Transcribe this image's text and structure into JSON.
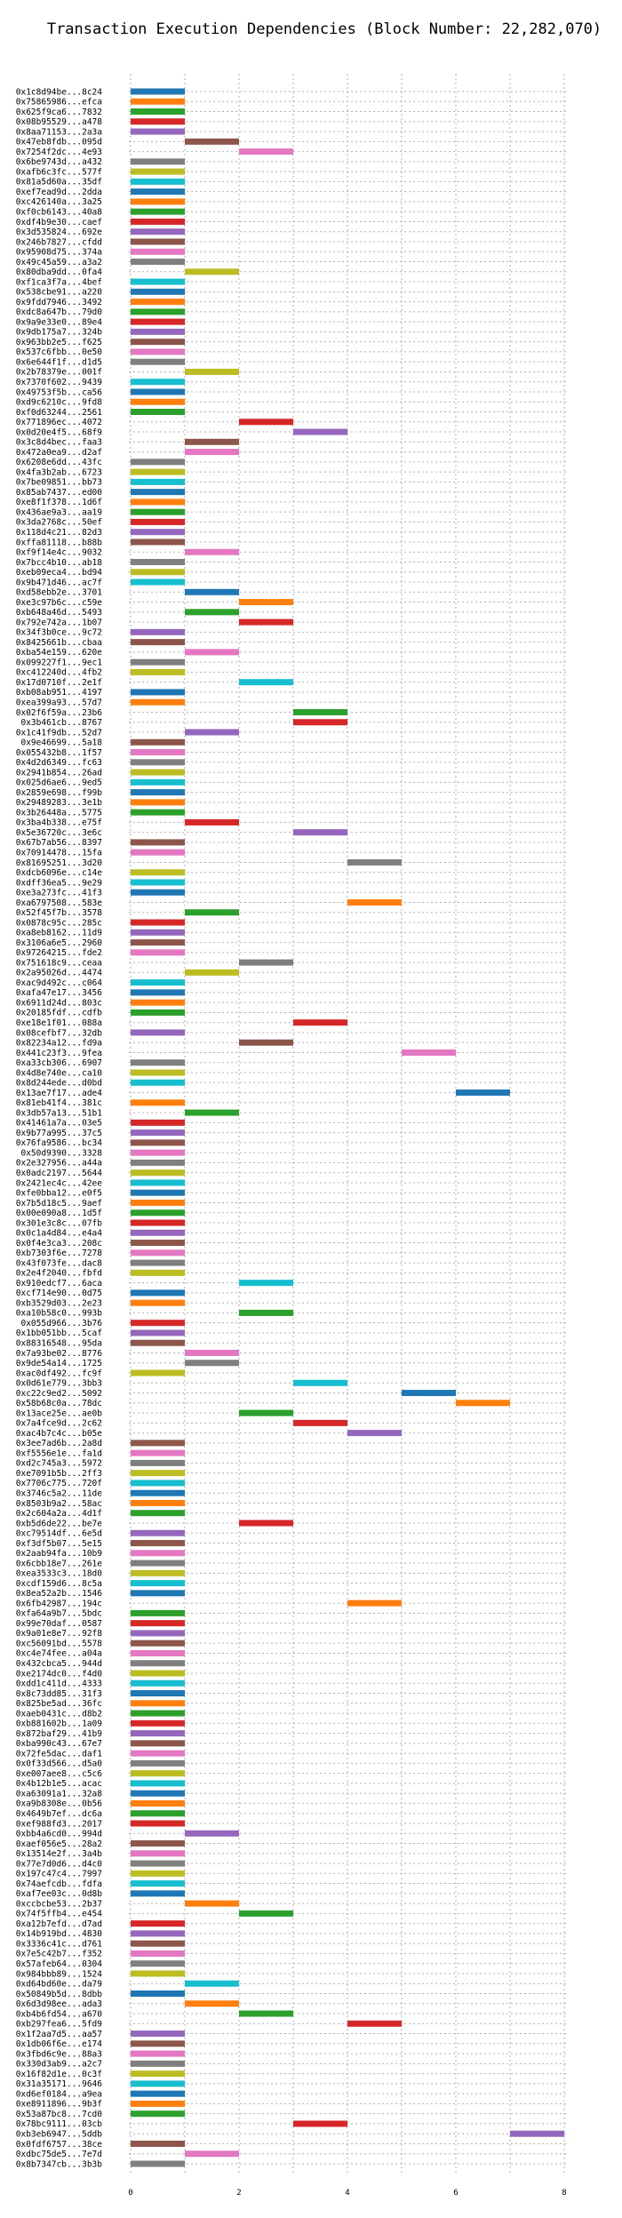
{
  "chart_data": {
    "type": "bar",
    "orientation": "horizontal",
    "title": "Transaction Execution Dependencies (Block Number: 22,282,070)",
    "xlabel": "",
    "ylabel": "",
    "xlim": [
      0,
      8
    ],
    "xticks": [
      0,
      2,
      4,
      6,
      8
    ],
    "grid": true,
    "colors": [
      "#1f77b4",
      "#ff7f0e",
      "#2ca02c",
      "#d62728",
      "#9467bd",
      "#8c564b",
      "#e377c2",
      "#7f7f7f",
      "#bcbd22",
      "#17becf"
    ],
    "transactions": [
      {
        "label": "0x1c8d94be...8c24",
        "start": 0
      },
      {
        "label": "0x75865986...efca",
        "start": 0
      },
      {
        "label": "0x625f9ca6...7832",
        "start": 0
      },
      {
        "label": "0x08b95529...a478",
        "start": 0
      },
      {
        "label": "0x8aa71153...2a3a",
        "start": 0
      },
      {
        "label": "0x47eb8fdb...095d",
        "start": 1
      },
      {
        "label": "0x7254f2dc...4e93",
        "start": 2
      },
      {
        "label": "0x6be9743d...a432",
        "start": 0
      },
      {
        "label": "0xafb6c3fc...577f",
        "start": 0
      },
      {
        "label": "0x81a5d60a...35df",
        "start": 0
      },
      {
        "label": "0xef7ead9d...2dda",
        "start": 0
      },
      {
        "label": "0xc426140a...3a25",
        "start": 0
      },
      {
        "label": "0xf0cb6143...40a8",
        "start": 0
      },
      {
        "label": "0xdf4b9e30...caef",
        "start": 0
      },
      {
        "label": "0x3d535824...692e",
        "start": 0
      },
      {
        "label": "0x246b7827...cfdd",
        "start": 0
      },
      {
        "label": "0x95908d75...374a",
        "start": 0
      },
      {
        "label": "0x49c45a59...a3a2",
        "start": 0
      },
      {
        "label": "0x80dba9dd...0fa4",
        "start": 1
      },
      {
        "label": "0xf1ca3f7a...4bef",
        "start": 0
      },
      {
        "label": "0x538cbe91...a220",
        "start": 0
      },
      {
        "label": "0x9fdd7946...3492",
        "start": 0
      },
      {
        "label": "0xdc8a647b...79d0",
        "start": 0
      },
      {
        "label": "0x9a9e33e0...89e4",
        "start": 0
      },
      {
        "label": "0x9db175a7...324b",
        "start": 0
      },
      {
        "label": "0x963bb2e5...f625",
        "start": 0
      },
      {
        "label": "0x537c6fbb...0e50",
        "start": 0
      },
      {
        "label": "0x6e644f1f...d1d5",
        "start": 0
      },
      {
        "label": "0x2b78379e...001f",
        "start": 1
      },
      {
        "label": "0x7370f602...9439",
        "start": 0
      },
      {
        "label": "0x49753f5b...ca56",
        "start": 0
      },
      {
        "label": "0xd9c6210c...9fd8",
        "start": 0
      },
      {
        "label": "0xf0d63244...2561",
        "start": 0
      },
      {
        "label": "0x771896ec...4072",
        "start": 2
      },
      {
        "label": "0x0d20e4f5...68f9",
        "start": 3
      },
      {
        "label": "0x3c8d4bec...faa3",
        "start": 1
      },
      {
        "label": "0x472a0ea9...d2af",
        "start": 1
      },
      {
        "label": "0x6208e6dd...43fc",
        "start": 0
      },
      {
        "label": "0x4fa3b2ab...6723",
        "start": 0
      },
      {
        "label": "0x7be09851...bb73",
        "start": 0
      },
      {
        "label": "0x85ab7437...ed00",
        "start": 0
      },
      {
        "label": "0xe8f1f378...1d6f",
        "start": 0
      },
      {
        "label": "0x436ae9a3...aa19",
        "start": 0
      },
      {
        "label": "0x3da2768c...50ef",
        "start": 0
      },
      {
        "label": "0x118d4c21...82d3",
        "start": 0
      },
      {
        "label": "0xffa81118...b88b",
        "start": 0
      },
      {
        "label": "0xf9f14e4c...9032",
        "start": 1
      },
      {
        "label": "0x7bcc4b10...ab18",
        "start": 0
      },
      {
        "label": "0xeb09eca4...bd94",
        "start": 0
      },
      {
        "label": "0x9b471d46...ac7f",
        "start": 0
      },
      {
        "label": "0xd58ebb2e...3701",
        "start": 1
      },
      {
        "label": "0xe3c97b6c...c59e",
        "start": 2
      },
      {
        "label": "0xb648a46d...5493",
        "start": 1
      },
      {
        "label": "0x792e742a...1b07",
        "start": 2
      },
      {
        "label": "0x34f3b0ce...9c72",
        "start": 0
      },
      {
        "label": "0x8425661b...cbaa",
        "start": 0
      },
      {
        "label": "0xba54e159...620e",
        "start": 1
      },
      {
        "label": "0x099227f1...9ec1",
        "start": 0
      },
      {
        "label": "0xc412240d...4fb2",
        "start": 0
      },
      {
        "label": "0x17d0710f...2e1f",
        "start": 2
      },
      {
        "label": "0xb08ab951...4197",
        "start": 0
      },
      {
        "label": "0xea399a93...57d7",
        "start": 0
      },
      {
        "label": "0x02f6f59a...23b6",
        "start": 3
      },
      {
        "label": "0x3b461cb...8767",
        "start": 3
      },
      {
        "label": "0x1c41f9db...52d7",
        "start": 1
      },
      {
        "label": "0x9e46699...5a18",
        "start": 0
      },
      {
        "label": "0x055432b8...1f57",
        "start": 0
      },
      {
        "label": "0x4d2d6349...fc63",
        "start": 0
      },
      {
        "label": "0x2941b854...26ad",
        "start": 0
      },
      {
        "label": "0x025d6ae6...9ed5",
        "start": 0
      },
      {
        "label": "0x2859e698...f99b",
        "start": 0
      },
      {
        "label": "0x29489283...3e1b",
        "start": 0
      },
      {
        "label": "0x3b26448a...5775",
        "start": 0
      },
      {
        "label": "0x3ba4b338...e75f",
        "start": 1
      },
      {
        "label": "0x5e36720c...3e6c",
        "start": 3
      },
      {
        "label": "0x67b7ab56...8397",
        "start": 0
      },
      {
        "label": "0x70914478...15fa",
        "start": 0
      },
      {
        "label": "0x81695251...3d20",
        "start": 4
      },
      {
        "label": "0xdcb6096e...c14e",
        "start": 0
      },
      {
        "label": "0xdff36ea5...9e29",
        "start": 0
      },
      {
        "label": "0xe3a273fc...41f3",
        "start": 0
      },
      {
        "label": "0xa6797508...583e",
        "start": 4
      },
      {
        "label": "0x52f45f7b...3578",
        "start": 1
      },
      {
        "label": "0x0878c95c...285c",
        "start": 0
      },
      {
        "label": "0xa8eb8162...11d9",
        "start": 0
      },
      {
        "label": "0x3106a6e5...2960",
        "start": 0
      },
      {
        "label": "0x97264215...fde2",
        "start": 0
      },
      {
        "label": "0x751618c9...ceaa",
        "start": 2
      },
      {
        "label": "0x2a95026d...4474",
        "start": 1
      },
      {
        "label": "0xac9d492c...c064",
        "start": 0
      },
      {
        "label": "0xafa47e17...3456",
        "start": 0
      },
      {
        "label": "0x6911d24d...803c",
        "start": 0
      },
      {
        "label": "0x20185fdf...cdfb",
        "start": 0
      },
      {
        "label": "0xe18e1f01...088a",
        "start": 3
      },
      {
        "label": "0x08cefbf7...32db",
        "start": 0
      },
      {
        "label": "0x82234a12...fd9a",
        "start": 2
      },
      {
        "label": "0x441c23f3...9fea",
        "start": 5
      },
      {
        "label": "0xa33cb306...6907",
        "start": 0
      },
      {
        "label": "0x4d8e740e...ca10",
        "start": 0
      },
      {
        "label": "0x8d244ede...d0bd",
        "start": 0
      },
      {
        "label": "0x13ae7f17...ade4",
        "start": 6
      },
      {
        "label": "0x81eb41f4...381c",
        "start": 0
      },
      {
        "label": "0x3db57a13...51b1",
        "start": 1
      },
      {
        "label": "0x41461a7a...03e5",
        "start": 0
      },
      {
        "label": "0x9b77a995...37c5",
        "start": 0
      },
      {
        "label": "0x76fa9586...bc34",
        "start": 0
      },
      {
        "label": "0x50d9390...3328",
        "start": 0
      },
      {
        "label": "0x2e327956...a44a",
        "start": 0
      },
      {
        "label": "0x0adc2197...5644",
        "start": 0
      },
      {
        "label": "0x2421ec4c...42ee",
        "start": 0
      },
      {
        "label": "0xfe0bba12...e0f5",
        "start": 0
      },
      {
        "label": "0x7b5d18c5...9aef",
        "start": 0
      },
      {
        "label": "0x00e090a8...1d5f",
        "start": 0
      },
      {
        "label": "0x301e3c8c...07fb",
        "start": 0
      },
      {
        "label": "0x0c1a4d84...e4a4",
        "start": 0
      },
      {
        "label": "0x0f4e3ca3...208c",
        "start": 0
      },
      {
        "label": "0xb7303f6e...7278",
        "start": 0
      },
      {
        "label": "0x43f073fe...dac8",
        "start": 0
      },
      {
        "label": "0x2e4f2040...fbfd",
        "start": 0
      },
      {
        "label": "0x910edcf7...6aca",
        "start": 2
      },
      {
        "label": "0xcf714e90...0d75",
        "start": 0
      },
      {
        "label": "0xb3529d03...2e23",
        "start": 0
      },
      {
        "label": "0xa10b58c0...993b",
        "start": 2
      },
      {
        "label": "0x055d966...3b76",
        "start": 0
      },
      {
        "label": "0x1bb051bb...5caf",
        "start": 0
      },
      {
        "label": "0x88316548...95da",
        "start": 0
      },
      {
        "label": "0x7a93be02...8776",
        "start": 1
      },
      {
        "label": "0x9de54a14...1725",
        "start": 1
      },
      {
        "label": "0xac0df492...fc9f",
        "start": 0
      },
      {
        "label": "0x0d61e779...3bb3",
        "start": 3
      },
      {
        "label": "0xc22c9ed2...5092",
        "start": 5
      },
      {
        "label": "0x58b68c0a...78dc",
        "start": 6
      },
      {
        "label": "0x13ace25e...ae0b",
        "start": 2
      },
      {
        "label": "0x7a4fce9d...2c62",
        "start": 3
      },
      {
        "label": "0xac4b7c4c...b05e",
        "start": 4
      },
      {
        "label": "0x3ee7ad6b...2a8d",
        "start": 0
      },
      {
        "label": "0xf5556e1e...fa1d",
        "start": 0
      },
      {
        "label": "0xd2c745a3...5972",
        "start": 0
      },
      {
        "label": "0xe7091b5b...2ff3",
        "start": 0
      },
      {
        "label": "0x7706c775...720f",
        "start": 0
      },
      {
        "label": "0x3746c5a2...11de",
        "start": 0
      },
      {
        "label": "0x8503b9a2...58ac",
        "start": 0
      },
      {
        "label": "0x2c604a2a...4d1f",
        "start": 0
      },
      {
        "label": "0xb5d6de22...be7e",
        "start": 2
      },
      {
        "label": "0xc79514df...6e5d",
        "start": 0
      },
      {
        "label": "0xf3df5b07...5e15",
        "start": 0
      },
      {
        "label": "0x2aab94fa...10b9",
        "start": 0
      },
      {
        "label": "0x6cbb18e7...261e",
        "start": 0
      },
      {
        "label": "0xea3533c3...18d0",
        "start": 0
      },
      {
        "label": "0xcdf159d6...8c5a",
        "start": 0
      },
      {
        "label": "0x8ea52a2b...1546",
        "start": 0
      },
      {
        "label": "0x6fb42987...194c",
        "start": 4
      },
      {
        "label": "0xfa64a9b7...5bdc",
        "start": 0
      },
      {
        "label": "0x99e70daf...0587",
        "start": 0
      },
      {
        "label": "0x9a01e8e7...92f8",
        "start": 0
      },
      {
        "label": "0xc56091bd...5578",
        "start": 0
      },
      {
        "label": "0xc4e74fee...a04a",
        "start": 0
      },
      {
        "label": "0x432cbca5...944d",
        "start": 0
      },
      {
        "label": "0xe2174dc0...f4d0",
        "start": 0
      },
      {
        "label": "0xdd1c411d...4333",
        "start": 0
      },
      {
        "label": "0x8c73dd85...31f3",
        "start": 0
      },
      {
        "label": "0x825be5ad...36fc",
        "start": 0
      },
      {
        "label": "0xaeb0431c...d8b2",
        "start": 0
      },
      {
        "label": "0xb881602b...1a09",
        "start": 0
      },
      {
        "label": "0x872baf29...41b9",
        "start": 0
      },
      {
        "label": "0xba990c43...67e7",
        "start": 0
      },
      {
        "label": "0x72fe5dac...daf1",
        "start": 0
      },
      {
        "label": "0x0f33d566...d5a0",
        "start": 0
      },
      {
        "label": "0xe007aee8...c5c6",
        "start": 0
      },
      {
        "label": "0x4b12b1e5...acac",
        "start": 0
      },
      {
        "label": "0xa63091a1...32a8",
        "start": 0
      },
      {
        "label": "0xa9b8308e...0b56",
        "start": 0
      },
      {
        "label": "0x4649b7ef...dc6a",
        "start": 0
      },
      {
        "label": "0xef988fd3...2017",
        "start": 0
      },
      {
        "label": "0xbb4a6cd0...994d",
        "start": 1
      },
      {
        "label": "0xaef056e5...28a2",
        "start": 0
      },
      {
        "label": "0x13514e2f...3a4b",
        "start": 0
      },
      {
        "label": "0x77e7d0d6...d4c0",
        "start": 0
      },
      {
        "label": "0x197c47c4...7997",
        "start": 0
      },
      {
        "label": "0x74aefcdb...fdfa",
        "start": 0
      },
      {
        "label": "0xaf7ee03c...0d8b",
        "start": 0
      },
      {
        "label": "0xccbcbe53...2b37",
        "start": 1
      },
      {
        "label": "0x74f5ffb4...e454",
        "start": 2
      },
      {
        "label": "0xa12b7efd...d7ad",
        "start": 0
      },
      {
        "label": "0x14b919bd...4830",
        "start": 0
      },
      {
        "label": "0x3336c41c...d761",
        "start": 0
      },
      {
        "label": "0x7e5c42b7...f352",
        "start": 0
      },
      {
        "label": "0x57afeb64...0304",
        "start": 0
      },
      {
        "label": "0x984bbb89...1524",
        "start": 0
      },
      {
        "label": "0xd64bd60e...da79",
        "start": 1
      },
      {
        "label": "0x50849b5d...8dbb",
        "start": 0
      },
      {
        "label": "0x6d3d98ee...ada3",
        "start": 1
      },
      {
        "label": "0xb4b6fd54...a670",
        "start": 2
      },
      {
        "label": "0xb297fea6...5fd9",
        "start": 4
      },
      {
        "label": "0x1f2aa7d5...aa57",
        "start": 0
      },
      {
        "label": "0x1db06f6e...e174",
        "start": 0
      },
      {
        "label": "0x3fbd6c9e...88a3",
        "start": 0
      },
      {
        "label": "0x330d3ab9...a2c7",
        "start": 0
      },
      {
        "label": "0x16f82d1e...0c3f",
        "start": 0
      },
      {
        "label": "0x31a35171...9646",
        "start": 0
      },
      {
        "label": "0xd6ef0184...a9ea",
        "start": 0
      },
      {
        "label": "0xe8911896...9b3f",
        "start": 0
      },
      {
        "label": "0x53a87bc8...7cd0",
        "start": 0
      },
      {
        "label": "0x78bc9111...03cb",
        "start": 3
      },
      {
        "label": "0xb3eb6947...5ddb",
        "start": 7
      },
      {
        "label": "0x0fdf6757...38ce",
        "start": 0
      },
      {
        "label": "0xdbc75de5...7e7d",
        "start": 1
      },
      {
        "label": "0x8b7347cb...3b3b",
        "start": 0
      }
    ]
  }
}
